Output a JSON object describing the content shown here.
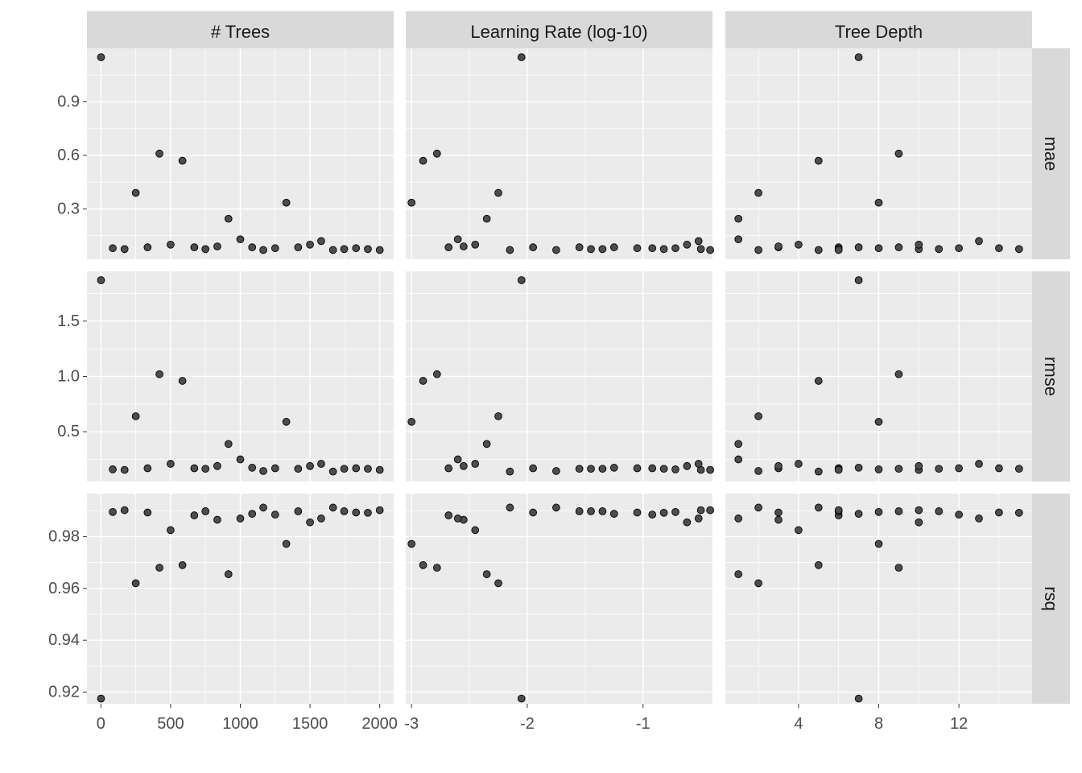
{
  "chart_data": {
    "type": "scatter",
    "facet_columns": [
      {
        "key": "trees",
        "label": "# Trees",
        "xlim": [
          -100,
          2100
        ],
        "ticks": [
          0,
          500,
          1000,
          1500,
          2000
        ],
        "tick_labels": [
          "0",
          "500",
          "1000",
          "1500",
          "2000"
        ]
      },
      {
        "key": "lr",
        "label": "Learning Rate (log-10)",
        "xlim": [
          -3.05,
          -0.4
        ],
        "ticks": [
          -3,
          -2,
          -1
        ],
        "tick_labels": [
          "-3",
          "-2",
          "-1"
        ]
      },
      {
        "key": "depth",
        "label": "Tree Depth",
        "xlim": [
          0.35,
          15.65
        ],
        "ticks": [
          4,
          8,
          12
        ],
        "tick_labels": [
          "4",
          "8",
          "12"
        ]
      }
    ],
    "facet_rows": [
      {
        "key": "mae",
        "label": "mae",
        "ylim": [
          0.018,
          1.2
        ],
        "ticks": [
          0.3,
          0.6,
          0.9
        ],
        "tick_labels": [
          "0.3",
          "0.6",
          "0.9"
        ]
      },
      {
        "key": "rmse",
        "label": "rmse",
        "ylim": [
          0.05,
          1.95
        ],
        "ticks": [
          0.5,
          1.0,
          1.5
        ],
        "tick_labels": [
          "0.5",
          "1.0",
          "1.5"
        ]
      },
      {
        "key": "rsq",
        "label": "rsq",
        "ylim": [
          0.9155,
          0.9966
        ],
        "ticks": [
          0.92,
          0.94,
          0.96,
          0.98
        ],
        "tick_labels": [
          "0.92",
          "0.94",
          "0.96",
          "0.98"
        ]
      }
    ],
    "grid": true,
    "legend": "none",
    "points": [
      {
        "trees": 1,
        "lr": -2.05,
        "depth": 7,
        "mae": 1.15,
        "rmse": 1.87,
        "rsq": 0.9175
      },
      {
        "trees": 85,
        "lr": -0.72,
        "depth": 8,
        "mae": 0.08,
        "rmse": 0.16,
        "rsq": 0.9895
      },
      {
        "trees": 170,
        "lr": -0.5,
        "depth": 10,
        "mae": 0.075,
        "rmse": 0.155,
        "rsq": 0.9902
      },
      {
        "trees": 250,
        "lr": -2.25,
        "depth": 2,
        "mae": 0.39,
        "rmse": 0.64,
        "rsq": 0.962
      },
      {
        "trees": 335,
        "lr": -1.95,
        "depth": 3,
        "mae": 0.085,
        "rmse": 0.17,
        "rsq": 0.9893
      },
      {
        "trees": 420,
        "lr": -2.78,
        "depth": 9,
        "mae": 0.61,
        "rmse": 1.02,
        "rsq": 0.968
      },
      {
        "trees": 500,
        "lr": -2.45,
        "depth": 4,
        "mae": 0.1,
        "rmse": 0.21,
        "rsq": 0.9825
      },
      {
        "trees": 585,
        "lr": -2.9,
        "depth": 5,
        "mae": 0.57,
        "rmse": 0.96,
        "rsq": 0.969
      },
      {
        "trees": 670,
        "lr": -2.68,
        "depth": 6,
        "mae": 0.085,
        "rmse": 0.17,
        "rsq": 0.9882
      },
      {
        "trees": 750,
        "lr": -1.45,
        "depth": 6,
        "mae": 0.075,
        "rmse": 0.165,
        "rsq": 0.9898
      },
      {
        "trees": 835,
        "lr": -2.55,
        "depth": 3,
        "mae": 0.09,
        "rmse": 0.19,
        "rsq": 0.9865
      },
      {
        "trees": 915,
        "lr": -2.35,
        "depth": 1,
        "mae": 0.245,
        "rmse": 0.39,
        "rsq": 0.9655
      },
      {
        "trees": 1000,
        "lr": -2.6,
        "depth": 1,
        "mae": 0.13,
        "rmse": 0.25,
        "rsq": 0.987
      },
      {
        "trees": 1085,
        "lr": -1.25,
        "depth": 7,
        "mae": 0.085,
        "rmse": 0.175,
        "rsq": 0.9888
      },
      {
        "trees": 1165,
        "lr": -1.75,
        "depth": 2,
        "mae": 0.07,
        "rmse": 0.145,
        "rsq": 0.9912
      },
      {
        "trees": 1250,
        "lr": -0.92,
        "depth": 12,
        "mae": 0.08,
        "rmse": 0.17,
        "rsq": 0.9885
      },
      {
        "trees": 1330,
        "lr": -3.0,
        "depth": 8,
        "mae": 0.335,
        "rmse": 0.59,
        "rsq": 0.9772
      },
      {
        "trees": 1415,
        "lr": -1.55,
        "depth": 9,
        "mae": 0.085,
        "rmse": 0.165,
        "rsq": 0.9898
      },
      {
        "trees": 1500,
        "lr": -0.62,
        "depth": 10,
        "mae": 0.1,
        "rmse": 0.19,
        "rsq": 0.9855
      },
      {
        "trees": 1580,
        "lr": -0.52,
        "depth": 13,
        "mae": 0.12,
        "rmse": 0.21,
        "rsq": 0.987
      },
      {
        "trees": 1665,
        "lr": -2.15,
        "depth": 5,
        "mae": 0.07,
        "rmse": 0.14,
        "rsq": 0.9912
      },
      {
        "trees": 1745,
        "lr": -1.35,
        "depth": 11,
        "mae": 0.075,
        "rmse": 0.165,
        "rsq": 0.9898
      },
      {
        "trees": 1830,
        "lr": -1.05,
        "depth": 14,
        "mae": 0.08,
        "rmse": 0.17,
        "rsq": 0.9893
      },
      {
        "trees": 1915,
        "lr": -0.82,
        "depth": 15,
        "mae": 0.075,
        "rmse": 0.165,
        "rsq": 0.9892
      },
      {
        "trees": 2000,
        "lr": -0.42,
        "depth": 6,
        "mae": 0.07,
        "rmse": 0.155,
        "rsq": 0.9902
      }
    ]
  },
  "colors": {
    "panel_bg": "#ebebeb",
    "strip_bg": "#d9d9d9",
    "grid": "#ffffff",
    "point_fill": "#4d4d4d",
    "point_stroke": "#000000",
    "tick_text": "#4d4d4d",
    "strip_text": "#1a1a1a"
  }
}
